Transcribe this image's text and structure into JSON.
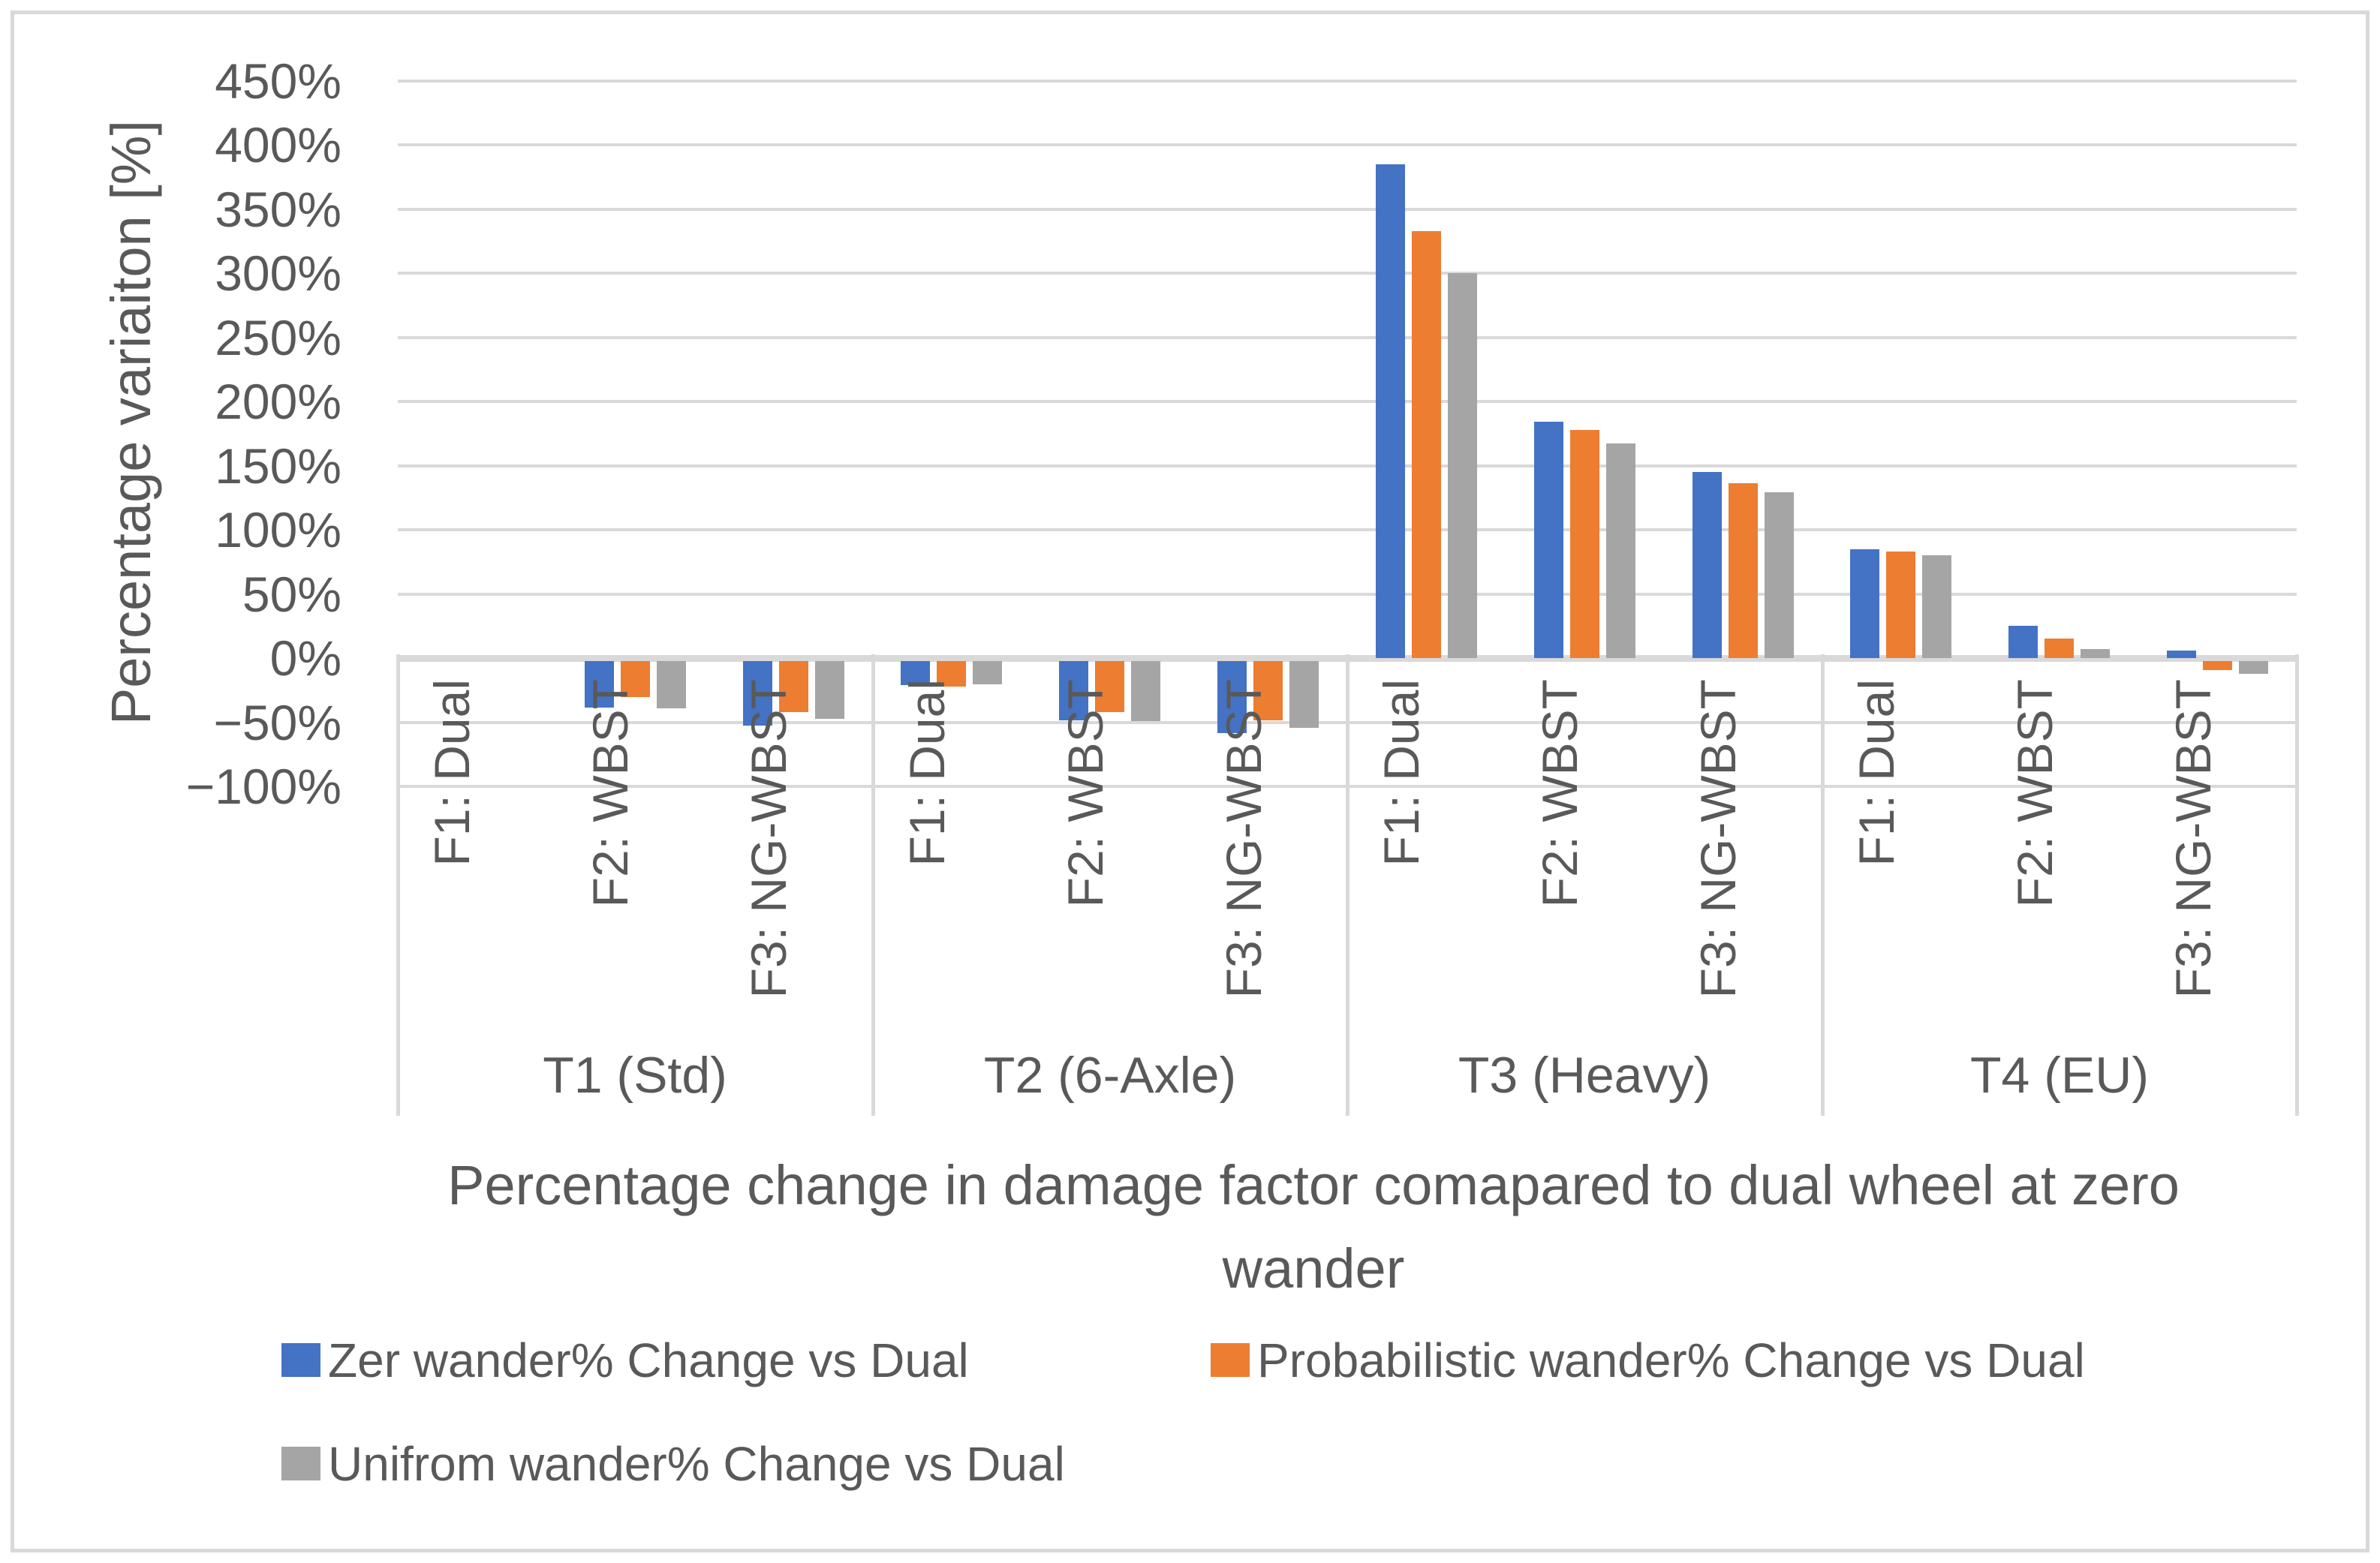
{
  "chart_data": {
    "type": "bar",
    "title": "Percentage change in damage factor comapared to dual wheel at zero wander",
    "ylabel": "Percentage variaiton [%]",
    "ylim": [
      -100,
      450
    ],
    "grid": true,
    "legend_position": "bottom",
    "groups": [
      "T1 (Std)",
      "T2 (6-Axle)",
      "T3 (Heavy)",
      "T4 (EU)"
    ],
    "subcategories": [
      "F1: Dual",
      "F2: WBST",
      "F3: NG-WBST"
    ],
    "y_ticks": [
      {
        "v": 450,
        "label": "450%"
      },
      {
        "v": 400,
        "label": "400%"
      },
      {
        "v": 350,
        "label": "350%"
      },
      {
        "v": 300,
        "label": "300%"
      },
      {
        "v": 250,
        "label": "250%"
      },
      {
        "v": 200,
        "label": "200%"
      },
      {
        "v": 150,
        "label": "150%"
      },
      {
        "v": 100,
        "label": "100%"
      },
      {
        "v": 50,
        "label": "50%"
      },
      {
        "v": 0,
        "label": "0%"
      },
      {
        "v": -50,
        "label": "−50%"
      },
      {
        "v": -100,
        "label": "−100%"
      }
    ],
    "series": [
      {
        "name": "Zer wander% Change vs Dual",
        "color": "#4472C4",
        "values": [
          [
            0,
            -36,
            -50
          ],
          [
            -19,
            -46,
            -56
          ],
          [
            385,
            184,
            145
          ],
          [
            85,
            25,
            6
          ]
        ]
      },
      {
        "name": "Probabilistic wander% Change vs Dual",
        "color": "#ED7D31",
        "values": [
          [
            0,
            -28,
            -40
          ],
          [
            -20,
            -40,
            -46
          ],
          [
            333,
            178,
            136
          ],
          [
            83,
            15,
            -7
          ]
        ]
      },
      {
        "name": "Unifrom wander% Change vs Dual",
        "color": "#A5A5A5",
        "values": [
          [
            0,
            -37,
            -45
          ],
          [
            -18,
            -47,
            -52
          ],
          [
            300,
            167,
            129
          ],
          [
            80,
            7,
            -10
          ]
        ]
      }
    ],
    "colors": {
      "text": "#595959",
      "gridline": "#D9D9D9",
      "border": "#D9D9D9"
    }
  }
}
